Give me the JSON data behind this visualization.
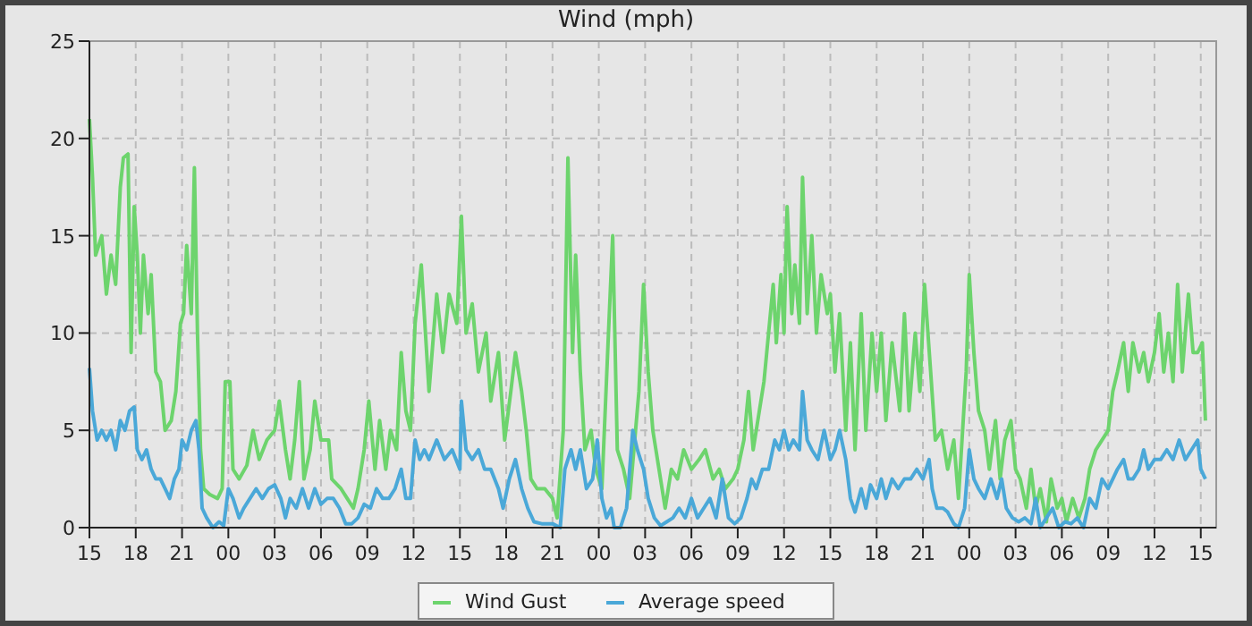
{
  "chart_data": {
    "type": "line",
    "title": "Wind (mph)",
    "xlim": [
      15,
      88
    ],
    "xticks": [
      {
        "value": 15,
        "label": "15"
      },
      {
        "value": 18,
        "label": "18"
      },
      {
        "value": 21,
        "label": "21"
      },
      {
        "value": 24,
        "label": "00"
      },
      {
        "value": 27,
        "label": "03"
      },
      {
        "value": 30,
        "label": "06"
      },
      {
        "value": 33,
        "label": "09"
      },
      {
        "value": 36,
        "label": "12"
      },
      {
        "value": 39,
        "label": "15"
      },
      {
        "value": 42,
        "label": "18"
      },
      {
        "value": 45,
        "label": "21"
      },
      {
        "value": 48,
        "label": "00"
      },
      {
        "value": 51,
        "label": "03"
      },
      {
        "value": 54,
        "label": "06"
      },
      {
        "value": 57,
        "label": "09"
      },
      {
        "value": 60,
        "label": "12"
      },
      {
        "value": 63,
        "label": "15"
      },
      {
        "value": 66,
        "label": "18"
      },
      {
        "value": 69,
        "label": "21"
      },
      {
        "value": 72,
        "label": "00"
      },
      {
        "value": 75,
        "label": "03"
      },
      {
        "value": 78,
        "label": "06"
      },
      {
        "value": 81,
        "label": "09"
      },
      {
        "value": 84,
        "label": "12"
      },
      {
        "value": 87,
        "label": "15"
      }
    ],
    "ylim": [
      0,
      25
    ],
    "yticks": [
      0,
      5,
      10,
      15,
      20,
      25
    ],
    "grid": true,
    "legend": "bottom",
    "marker": "none",
    "line_style": "solid",
    "series": [
      {
        "name": "Wind Gust",
        "color": "#6dd46d",
        "x": [
          15.0,
          15.2,
          15.4,
          15.8,
          16.1,
          16.4,
          16.7,
          17.0,
          17.2,
          17.5,
          17.7,
          17.9,
          18.1,
          18.3,
          18.5,
          18.8,
          19.0,
          19.3,
          19.6,
          19.9,
          20.3,
          20.6,
          20.9,
          21.1,
          21.3,
          21.6,
          21.8,
          22.0,
          22.2,
          22.4,
          22.8,
          23.3,
          23.6,
          23.8,
          24.1,
          24.3,
          24.7,
          25.2,
          25.6,
          26.0,
          26.5,
          27.0,
          27.3,
          27.7,
          28.0,
          28.3,
          28.6,
          28.9,
          29.3,
          29.6,
          30.0,
          30.5,
          30.7,
          31.3,
          31.7,
          32.1,
          32.4,
          32.8,
          33.1,
          33.5,
          33.8,
          34.2,
          34.5,
          34.9,
          35.2,
          35.5,
          35.8,
          36.1,
          36.5,
          37.0,
          37.5,
          37.9,
          38.3,
          38.8,
          39.1,
          39.4,
          39.8,
          40.2,
          40.7,
          41.0,
          41.5,
          41.9,
          42.3,
          42.6,
          43.0,
          43.3,
          43.6,
          44.0,
          44.5,
          45.0,
          45.3,
          45.7,
          46.0,
          46.3,
          46.5,
          46.8,
          47.1,
          47.5,
          47.8,
          48.2,
          48.6,
          48.9,
          49.2,
          49.6,
          50.0,
          50.6,
          50.9,
          51.2,
          51.5,
          51.9,
          52.3,
          52.7,
          53.1,
          53.5,
          54.0,
          54.5,
          54.9,
          55.4,
          55.8,
          56.2,
          56.7,
          57.0,
          57.4,
          57.7,
          58.0,
          58.4,
          58.7,
          59.0,
          59.3,
          59.5,
          59.8,
          60.0,
          60.2,
          60.5,
          60.7,
          61.0,
          61.2,
          61.5,
          61.8,
          62.1,
          62.4,
          62.8,
          63.0,
          63.3,
          63.6,
          64.0,
          64.3,
          64.6,
          65.0,
          65.3,
          65.7,
          66.0,
          66.3,
          66.6,
          67.0,
          67.5,
          67.8,
          68.1,
          68.5,
          68.8,
          69.1,
          69.5,
          69.8,
          70.2,
          70.6,
          71.0,
          71.3,
          71.8,
          72.0,
          72.3,
          72.6,
          73.0,
          73.3,
          73.7,
          74.0,
          74.3,
          74.7,
          75.0,
          75.3,
          75.7,
          76.0,
          76.3,
          76.6,
          77.0,
          77.3,
          77.7,
          78.0,
          78.3,
          78.7,
          79.1,
          79.5,
          79.8,
          80.2,
          80.6,
          81.0,
          81.3,
          81.6,
          82.0,
          82.3,
          82.6,
          83.0,
          83.3,
          83.6,
          84.0,
          84.3,
          84.6,
          84.9,
          85.2,
          85.5,
          85.8,
          86.2,
          86.5,
          86.8,
          87.1,
          87.3
        ],
        "values": [
          21,
          18,
          14,
          15,
          12,
          14,
          12.5,
          17.5,
          19,
          19.2,
          9,
          16.5,
          14,
          10,
          14,
          11,
          13,
          8,
          7.5,
          5,
          5.5,
          7,
          10.5,
          11,
          14.5,
          11,
          18.5,
          10,
          4,
          2,
          1.7,
          1.5,
          2,
          7.5,
          7.5,
          3,
          2.5,
          3.2,
          5,
          3.5,
          4.5,
          5,
          6.5,
          4,
          2.5,
          4.5,
          7.5,
          2.5,
          4,
          6.5,
          4.5,
          4.5,
          2.5,
          2,
          1.5,
          1,
          2,
          4,
          6.5,
          3,
          5.5,
          3,
          5,
          4,
          9,
          6,
          5,
          10.5,
          13.5,
          7,
          12,
          9,
          12,
          10.5,
          16,
          10,
          11.5,
          8,
          10,
          6.5,
          9,
          4.5,
          7,
          9,
          7,
          5,
          2.5,
          2,
          2,
          1.5,
          0.5,
          5,
          19,
          9,
          14,
          8,
          4,
          5,
          3,
          2,
          9.5,
          15,
          4,
          3,
          1.5,
          7,
          12.5,
          8,
          5,
          3,
          1,
          3,
          2.5,
          4,
          3,
          3.5,
          4,
          2.5,
          3,
          2,
          2.5,
          3,
          4.5,
          7,
          4,
          6,
          7.5,
          10,
          12.5,
          9.5,
          13,
          10,
          16.5,
          11,
          13.5,
          10.5,
          18,
          11,
          15,
          10,
          13,
          11,
          12,
          8,
          11,
          5,
          9.5,
          4,
          11,
          5,
          10,
          7,
          10,
          5.5,
          9.5,
          6,
          11,
          6,
          10,
          7,
          12.5,
          8,
          4.5,
          5,
          3,
          4.5,
          1.5,
          8,
          13,
          9,
          6,
          5,
          3,
          5.5,
          2.5,
          4.5,
          5.5,
          3,
          2.5,
          1,
          3,
          1,
          2,
          0.3,
          2.5,
          1,
          1.5,
          0.3,
          1.5,
          0.5,
          1.5,
          3,
          4,
          4.5,
          5,
          7,
          8,
          9.5,
          7,
          9.5,
          8,
          9,
          7.5,
          9,
          11,
          8,
          10,
          7.5,
          12.5,
          8,
          12,
          9,
          9,
          9.5,
          5.5
        ]
      },
      {
        "name": "Average speed",
        "color": "#4aa8d8",
        "x": [
          15.0,
          15.2,
          15.5,
          15.8,
          16.1,
          16.4,
          16.7,
          17.0,
          17.3,
          17.6,
          17.9,
          18.1,
          18.4,
          18.7,
          19.0,
          19.3,
          19.6,
          19.9,
          20.2,
          20.5,
          20.8,
          21.0,
          21.3,
          21.6,
          21.9,
          22.1,
          22.3,
          22.6,
          23.0,
          23.4,
          23.7,
          24.0,
          24.3,
          24.7,
          25.0,
          25.4,
          25.8,
          26.2,
          26.6,
          27.0,
          27.4,
          27.7,
          28.0,
          28.4,
          28.8,
          29.2,
          29.6,
          30.0,
          30.4,
          30.8,
          31.2,
          31.6,
          32.0,
          32.4,
          32.8,
          33.2,
          33.6,
          34.0,
          34.4,
          34.8,
          35.2,
          35.5,
          35.8,
          36.1,
          36.4,
          36.7,
          37.0,
          37.5,
          38.0,
          38.5,
          39.0,
          39.1,
          39.4,
          39.8,
          40.2,
          40.6,
          41.0,
          41.5,
          41.8,
          42.2,
          42.6,
          43.0,
          43.4,
          43.8,
          44.3,
          45.0,
          45.5,
          45.8,
          46.2,
          46.5,
          46.8,
          47.2,
          47.6,
          47.9,
          48.2,
          48.5,
          48.8,
          49.0,
          49.4,
          49.8,
          50.2,
          50.5,
          50.9,
          51.2,
          51.6,
          52.0,
          52.4,
          52.8,
          53.2,
          53.6,
          54.0,
          54.4,
          54.8,
          55.2,
          55.6,
          56.0,
          56.4,
          56.8,
          57.2,
          57.6,
          57.9,
          58.2,
          58.6,
          59.0,
          59.4,
          59.7,
          60.0,
          60.3,
          60.6,
          61.0,
          61.2,
          61.5,
          61.8,
          62.2,
          62.6,
          63.0,
          63.3,
          63.6,
          64.0,
          64.3,
          64.6,
          65.0,
          65.3,
          65.6,
          66.0,
          66.3,
          66.6,
          67.0,
          67.4,
          67.8,
          68.2,
          68.6,
          69.0,
          69.4,
          69.6,
          69.9,
          70.3,
          70.6,
          71.0,
          71.3,
          71.7,
          72.0,
          72.3,
          72.6,
          73.0,
          73.4,
          73.8,
          74.1,
          74.4,
          74.8,
          75.2,
          75.6,
          76.0,
          76.3,
          76.6,
          77.0,
          77.4,
          77.8,
          78.2,
          78.6,
          79.0,
          79.4,
          79.8,
          80.2,
          80.6,
          81.0,
          81.3,
          81.6,
          82.0,
          82.3,
          82.6,
          83.0,
          83.3,
          83.6,
          84.0,
          84.4,
          84.8,
          85.2,
          85.6,
          86.0,
          86.4,
          86.8,
          87.0,
          87.3
        ],
        "values": [
          8.2,
          6,
          4.5,
          5,
          4.5,
          5,
          4,
          5.5,
          5,
          6,
          6.2,
          4,
          3.5,
          4,
          3,
          2.5,
          2.5,
          2,
          1.5,
          2.5,
          3,
          4.5,
          4,
          5,
          5.5,
          4,
          1,
          0.5,
          0,
          0.3,
          0.1,
          2,
          1.5,
          0.5,
          1,
          1.5,
          2,
          1.5,
          2,
          2.2,
          1.5,
          0.5,
          1.5,
          1,
          2,
          1,
          2,
          1.2,
          1.5,
          1.5,
          1,
          0.2,
          0.2,
          0.5,
          1.2,
          1,
          2,
          1.5,
          1.5,
          2,
          3,
          1.5,
          1.5,
          4.5,
          3.5,
          4,
          3.5,
          4.5,
          3.5,
          4,
          3,
          6.5,
          4,
          3.5,
          4,
          3,
          3,
          2,
          1,
          2.5,
          3.5,
          2,
          1,
          0.3,
          0.2,
          0.2,
          0,
          3,
          4,
          3,
          4,
          2,
          2.5,
          4.5,
          1.5,
          0.5,
          1,
          0,
          0,
          1,
          5,
          4,
          3,
          1.5,
          0.5,
          0.1,
          0.3,
          0.5,
          1,
          0.5,
          1.5,
          0.5,
          1,
          1.5,
          0.5,
          2.5,
          0.5,
          0.2,
          0.5,
          1.5,
          2.5,
          2,
          3,
          3,
          4.5,
          4,
          5,
          4,
          4.5,
          4,
          7,
          4.5,
          4,
          3.5,
          5,
          3.5,
          4,
          5,
          3.5,
          1.5,
          0.8,
          2,
          1,
          2.2,
          1.5,
          2.5,
          1.5,
          2.5,
          2,
          2.5,
          2.5,
          3,
          2.5,
          3.5,
          2,
          1,
          1,
          0.8,
          0.2,
          0,
          1,
          4,
          2.5,
          2,
          1.5,
          2.5,
          1.5,
          2.5,
          1,
          0.5,
          0.3,
          0.5,
          0.2,
          1.5,
          0,
          0.5,
          1,
          0,
          0.3,
          0.2,
          0.5,
          0,
          1.5,
          1,
          2.5,
          2,
          2.5,
          3,
          3.5,
          2.5,
          2.5,
          3,
          4,
          3,
          3.5,
          3.5,
          4,
          3.5,
          4.5,
          3.5,
          4,
          4.5,
          3,
          2.5
        ]
      }
    ]
  }
}
